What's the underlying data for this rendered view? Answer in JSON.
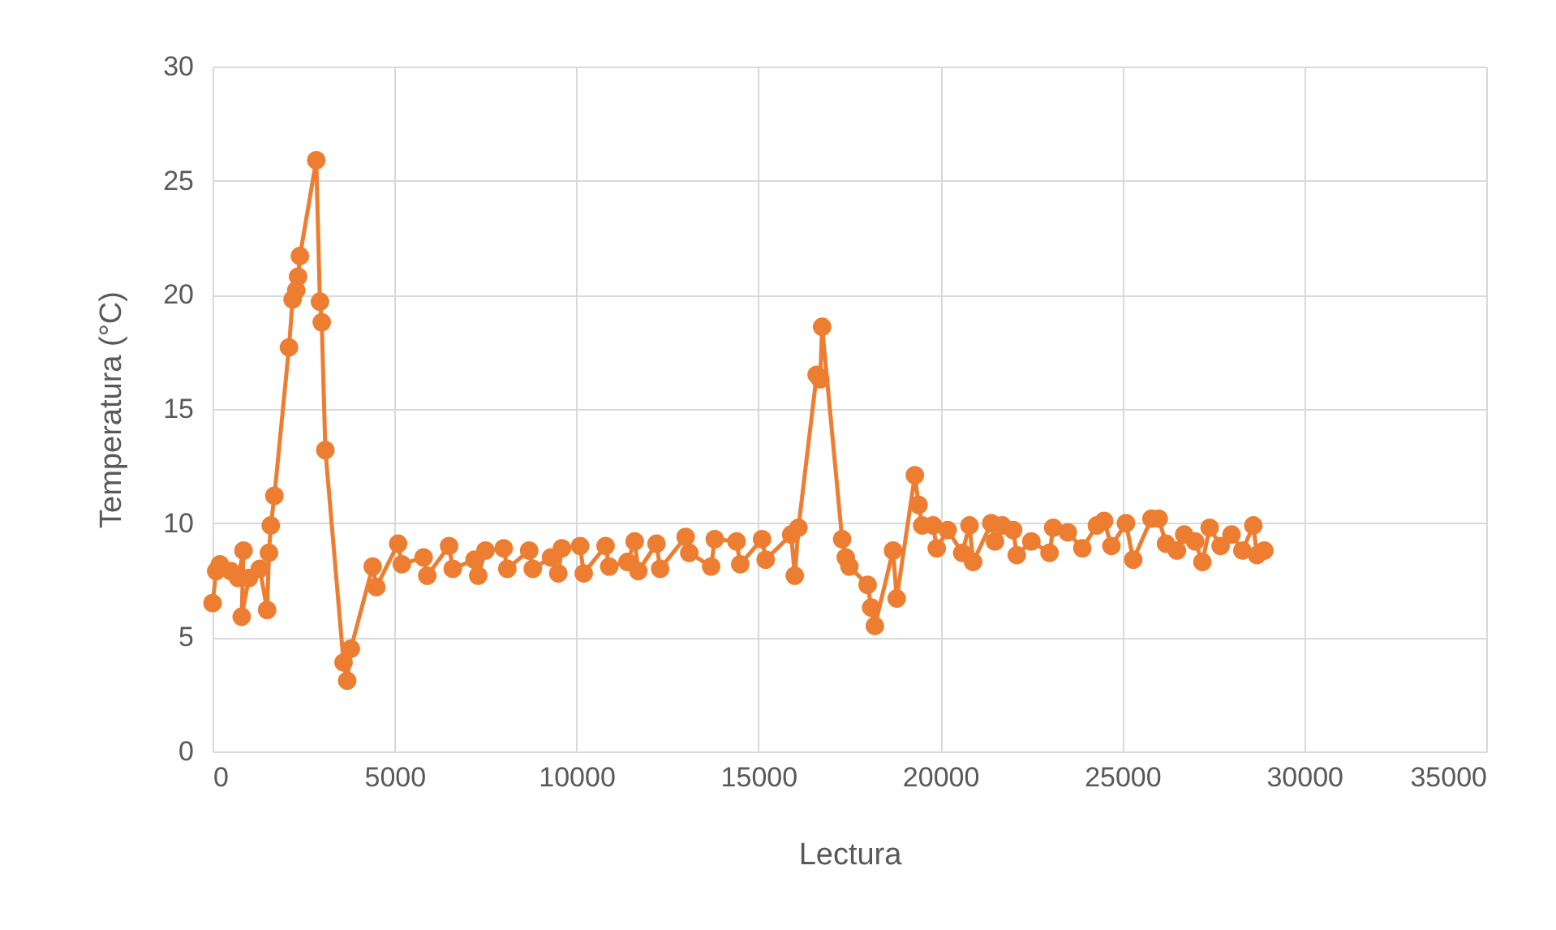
{
  "chart_data": {
    "type": "line",
    "xlabel": "Lectura",
    "ylabel": "Temperatura (°C)",
    "xlim": [
      0,
      35000
    ],
    "xticks": [
      0,
      5000,
      10000,
      15000,
      20000,
      25000,
      30000,
      35000
    ],
    "ylim": [
      0,
      30
    ],
    "yticks": [
      0,
      5,
      10,
      15,
      20,
      25,
      30
    ],
    "grid": true,
    "marker": "circle",
    "line_style": "solid",
    "series": [
      {
        "color": "#ed7d31",
        "x": [
          0,
          100,
          200,
          500,
          700,
          850,
          800,
          1000,
          1300,
          1500,
          1550,
          1600,
          1700,
          2100,
          2200,
          2300,
          2350,
          2400,
          2850,
          2950,
          3000,
          3100,
          3600,
          3700,
          3800,
          4400,
          4500,
          5100,
          5200,
          5800,
          5900,
          6500,
          6600,
          7200,
          7300,
          7500,
          8000,
          8100,
          8700,
          8800,
          9300,
          9500,
          9600,
          10100,
          10200,
          10800,
          10900,
          11400,
          11600,
          11700,
          12200,
          12300,
          13000,
          13100,
          13700,
          13800,
          14400,
          14500,
          15100,
          15200,
          15900,
          16000,
          16100,
          16600,
          16700,
          16750,
          17300,
          17400,
          17500,
          18000,
          18100,
          18200,
          18700,
          18800,
          19300,
          19400,
          19500,
          19800,
          19900,
          20200,
          20600,
          20800,
          20900,
          21400,
          21500,
          21700,
          22000,
          22100,
          22500,
          23000,
          23100,
          23500,
          23900,
          24300,
          24500,
          24700,
          25100,
          25300,
          25800,
          26000,
          26200,
          26500,
          26700,
          27000,
          27200,
          27400,
          27700,
          28000,
          28300,
          28600,
          28700,
          28900
        ],
        "values": [
          6.5,
          7.9,
          8.2,
          7.9,
          7.6,
          8.8,
          5.9,
          7.6,
          8.0,
          6.2,
          8.7,
          9.9,
          11.2,
          17.7,
          19.8,
          20.2,
          20.8,
          21.7,
          25.9,
          19.7,
          18.8,
          13.2,
          3.9,
          3.1,
          4.5,
          8.1,
          7.2,
          9.1,
          8.2,
          8.5,
          7.7,
          9.0,
          8.0,
          8.4,
          7.7,
          8.8,
          8.9,
          8.0,
          8.8,
          8.0,
          8.5,
          7.8,
          8.9,
          9.0,
          7.8,
          9.0,
          8.1,
          8.3,
          9.2,
          7.9,
          9.1,
          8.0,
          9.4,
          8.7,
          8.1,
          9.3,
          9.2,
          8.2,
          9.3,
          8.4,
          9.5,
          7.7,
          9.8,
          16.5,
          16.3,
          18.6,
          9.3,
          8.5,
          8.1,
          7.3,
          6.3,
          5.5,
          8.8,
          6.7,
          12.1,
          10.8,
          9.9,
          9.9,
          8.9,
          9.7,
          8.7,
          9.9,
          8.3,
          10.0,
          9.2,
          9.9,
          9.7,
          8.6,
          9.2,
          8.7,
          9.8,
          9.6,
          8.9,
          9.9,
          10.1,
          9.0,
          10.0,
          8.4,
          10.2,
          10.2,
          9.1,
          8.8,
          9.5,
          9.2,
          8.3,
          9.8,
          9.0,
          9.5,
          8.8,
          9.9,
          8.6,
          8.8
        ]
      }
    ]
  }
}
